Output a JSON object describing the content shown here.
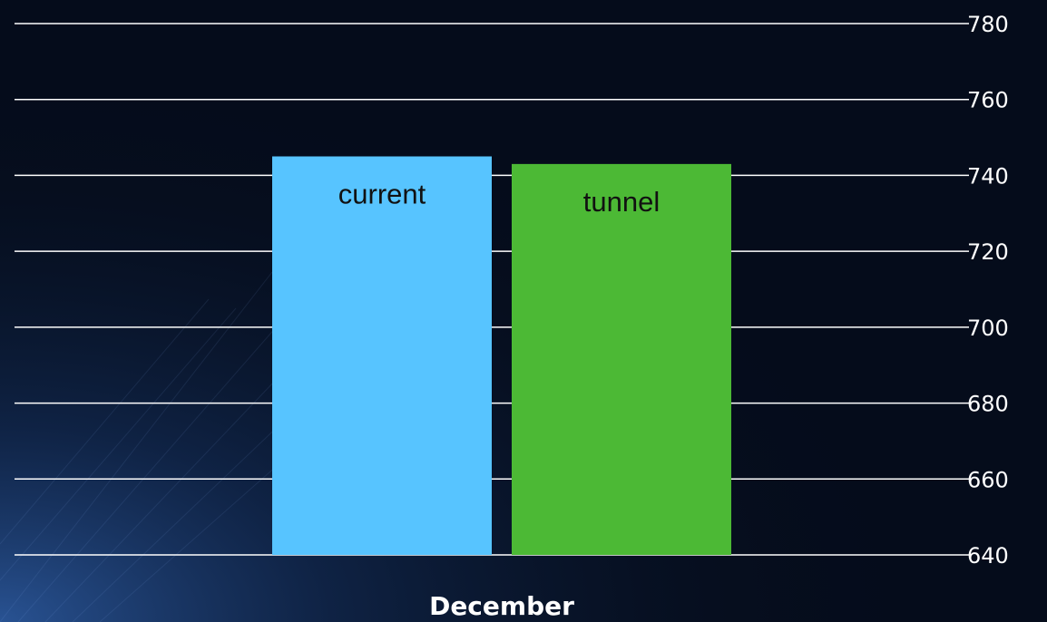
{
  "chart_data": {
    "type": "bar",
    "categories": [
      "December"
    ],
    "series": [
      {
        "name": "current",
        "values": [
          745
        ],
        "color": "#57c4ff"
      },
      {
        "name": "tunnel",
        "values": [
          743
        ],
        "color": "#4cb935"
      }
    ],
    "title": "",
    "xlabel": "",
    "ylabel": "",
    "ylim": [
      640,
      780
    ],
    "yticks": [
      "640",
      "660",
      "680",
      "700",
      "720",
      "740",
      "760",
      "780"
    ],
    "yaxis_position": "right",
    "grid": true,
    "legend": "none"
  },
  "colors": {
    "background": "#050c1b",
    "gridline": "#ffffff",
    "text": "#ffffff"
  }
}
